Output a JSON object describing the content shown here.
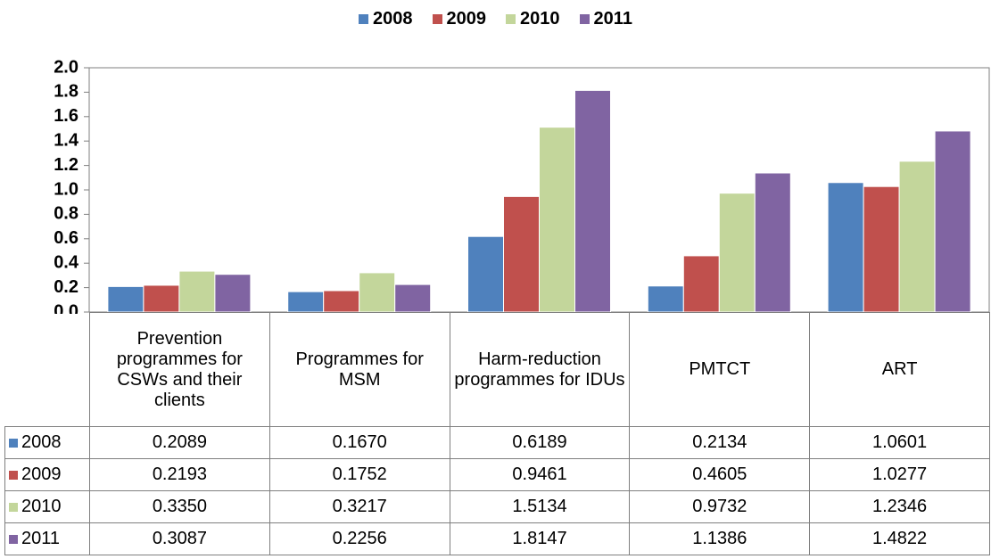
{
  "chart_data": {
    "type": "bar",
    "categories": [
      "Prevention programmes for CSWs and their clients",
      "Programmes for MSM",
      "Harm-reduction programmes for IDUs",
      "PMTCT",
      "ART"
    ],
    "series": [
      {
        "name": "2008",
        "color": "#4f81bd",
        "values": [
          0.2089,
          0.167,
          0.6189,
          0.2134,
          1.0601
        ],
        "value_labels": [
          "0.2089",
          "0.1670",
          "0.6189",
          "0.2134",
          "1.0601"
        ]
      },
      {
        "name": "2009",
        "color": "#c0504d",
        "values": [
          0.2193,
          0.1752,
          0.9461,
          0.4605,
          1.0277
        ],
        "value_labels": [
          "0.2193",
          "0.1752",
          "0.9461",
          "0.4605",
          "1.0277"
        ]
      },
      {
        "name": "2010",
        "color": "#c3d69b",
        "values": [
          0.335,
          0.3217,
          1.5134,
          0.9732,
          1.2346
        ],
        "value_labels": [
          "0.3350",
          "0.3217",
          "1.5134",
          "0.9732",
          "1.2346"
        ]
      },
      {
        "name": "2011",
        "color": "#8064a2",
        "values": [
          0.3087,
          0.2256,
          1.8147,
          1.1386,
          1.4822
        ],
        "value_labels": [
          "0.3087",
          "0.2256",
          "1.8147",
          "1.1386",
          "1.4822"
        ]
      }
    ],
    "ylim": [
      0,
      2
    ],
    "yticks": [
      {
        "value": 0,
        "label": "0.0"
      },
      0.2,
      0.4,
      0.6,
      0.8,
      {
        "value": 1,
        "label": "1.0"
      },
      1.2,
      1.4,
      1.6,
      1.8,
      {
        "value": 2,
        "label": "2.0"
      }
    ],
    "legend": "top",
    "grid": false
  }
}
